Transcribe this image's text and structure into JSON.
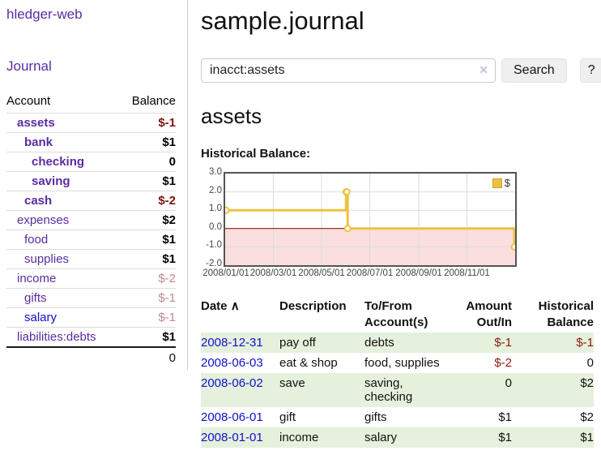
{
  "brand": "hledger-web",
  "nav": {
    "journal": "Journal"
  },
  "sidebar": {
    "account_header": "Account",
    "balance_header": "Balance",
    "accounts": [
      {
        "name": "assets",
        "indent": 0,
        "bold": true,
        "link": "purple",
        "balance": "$-1",
        "balance_style": "neg-strong"
      },
      {
        "name": "bank",
        "indent": 1,
        "bold": true,
        "link": "purple",
        "balance": "$1",
        "balance_style": "pos"
      },
      {
        "name": "checking",
        "indent": 2,
        "bold": true,
        "link": "purple",
        "balance": "0",
        "balance_style": "pos"
      },
      {
        "name": "saving",
        "indent": 2,
        "bold": true,
        "link": "purple",
        "balance": "$1",
        "balance_style": "pos"
      },
      {
        "name": "cash",
        "indent": 1,
        "bold": true,
        "link": "purple",
        "balance": "$-2",
        "balance_style": "neg-strong"
      },
      {
        "name": "expenses",
        "indent": 0,
        "bold": false,
        "link": "purple",
        "balance": "$2",
        "balance_style": "pos"
      },
      {
        "name": "food",
        "indent": 1,
        "bold": false,
        "link": "purple",
        "balance": "$1",
        "balance_style": "pos"
      },
      {
        "name": "supplies",
        "indent": 1,
        "bold": false,
        "link": "purple",
        "balance": "$1",
        "balance_style": "pos"
      },
      {
        "name": "income",
        "indent": 0,
        "bold": false,
        "link": "purple",
        "balance": "$-2",
        "balance_style": "neg-soft"
      },
      {
        "name": "gifts",
        "indent": 1,
        "bold": false,
        "link": "purple",
        "balance": "$-1",
        "balance_style": "neg-soft"
      },
      {
        "name": "salary",
        "indent": 1,
        "bold": false,
        "link": "blue",
        "balance": "$-1",
        "balance_style": "neg-soft"
      },
      {
        "name": "liabilities:debts",
        "indent": 0,
        "bold": false,
        "link": "purple",
        "balance": "$1",
        "balance_style": "pos"
      }
    ],
    "total": "0"
  },
  "page": {
    "title": "sample.journal",
    "account_heading": "assets",
    "chart_heading": "Historical Balance:"
  },
  "search": {
    "value": "inacct:assets",
    "clear": "✕",
    "button": "Search",
    "help": "?"
  },
  "chart_data": {
    "type": "line",
    "title": "Historical Balance:",
    "legend": "$",
    "legend_position": "top-right",
    "x_range": [
      "2008-01-01",
      "2008-12-31"
    ],
    "ylim": [
      -2,
      3
    ],
    "y_ticks": [
      "3.0",
      "2.0",
      "1.0",
      "0.0",
      "-1.0",
      "-2.0"
    ],
    "x_ticks": [
      "2008/01/01",
      "2008/03/01",
      "2008/05/01",
      "2008/07/01",
      "2008/09/01",
      "2008/11/01"
    ],
    "grid": true,
    "series": [
      {
        "name": "$",
        "points": [
          [
            "2008-01-01",
            1
          ],
          [
            "2008-06-01",
            2
          ],
          [
            "2008-06-02",
            2
          ],
          [
            "2008-06-03",
            0
          ],
          [
            "2008-12-31",
            -1
          ]
        ]
      }
    ],
    "colors": {
      "line": "#edc240",
      "marker_fill": "#ffffff",
      "grid": "#dcdcdc",
      "border": "#545454",
      "zero_line": "#8b0000",
      "negative_region": "#fbdfdf"
    }
  },
  "register_table": {
    "headers": [
      {
        "line1": "Date",
        "line2": "",
        "align": "left",
        "sort": "asc"
      },
      {
        "line1": "Description",
        "line2": "",
        "align": "left"
      },
      {
        "line1": "To/From",
        "line2": "Account(s)",
        "align": "left"
      },
      {
        "line1": "Amount",
        "line2": "Out/In",
        "align": "right"
      },
      {
        "line1": "Historical",
        "line2": "Balance",
        "align": "right"
      }
    ],
    "sort_icon": "∧",
    "rows": [
      {
        "date": "2008-12-31",
        "description": "pay off",
        "accounts": "debts",
        "amount": "$-1",
        "amount_neg": true,
        "balance": "$-1",
        "balance_neg": true,
        "zebra": true
      },
      {
        "date": "2008-06-03",
        "description": "eat & shop",
        "accounts": "food, supplies",
        "amount": "$-2",
        "amount_neg": true,
        "balance": "0",
        "balance_neg": false,
        "zebra": false
      },
      {
        "date": "2008-06-02",
        "description": "save",
        "accounts": "saving, checking",
        "amount": "0",
        "amount_neg": false,
        "balance": "$2",
        "balance_neg": false,
        "zebra": true
      },
      {
        "date": "2008-06-01",
        "description": "gift",
        "accounts": "gifts",
        "amount": "$1",
        "amount_neg": false,
        "balance": "$2",
        "balance_neg": false,
        "zebra": false
      },
      {
        "date": "2008-01-01",
        "description": "income",
        "accounts": "salary",
        "amount": "$1",
        "amount_neg": false,
        "balance": "$1",
        "balance_neg": false,
        "zebra": true
      }
    ]
  },
  "theme": {
    "link_purple": "#5a2ca0",
    "link_blue": "#1010cc",
    "negative_strong": "#7f1511",
    "negative_soft": "#c28989",
    "zebra_green": "#e5f1dc",
    "button_bg": "#efefef"
  }
}
